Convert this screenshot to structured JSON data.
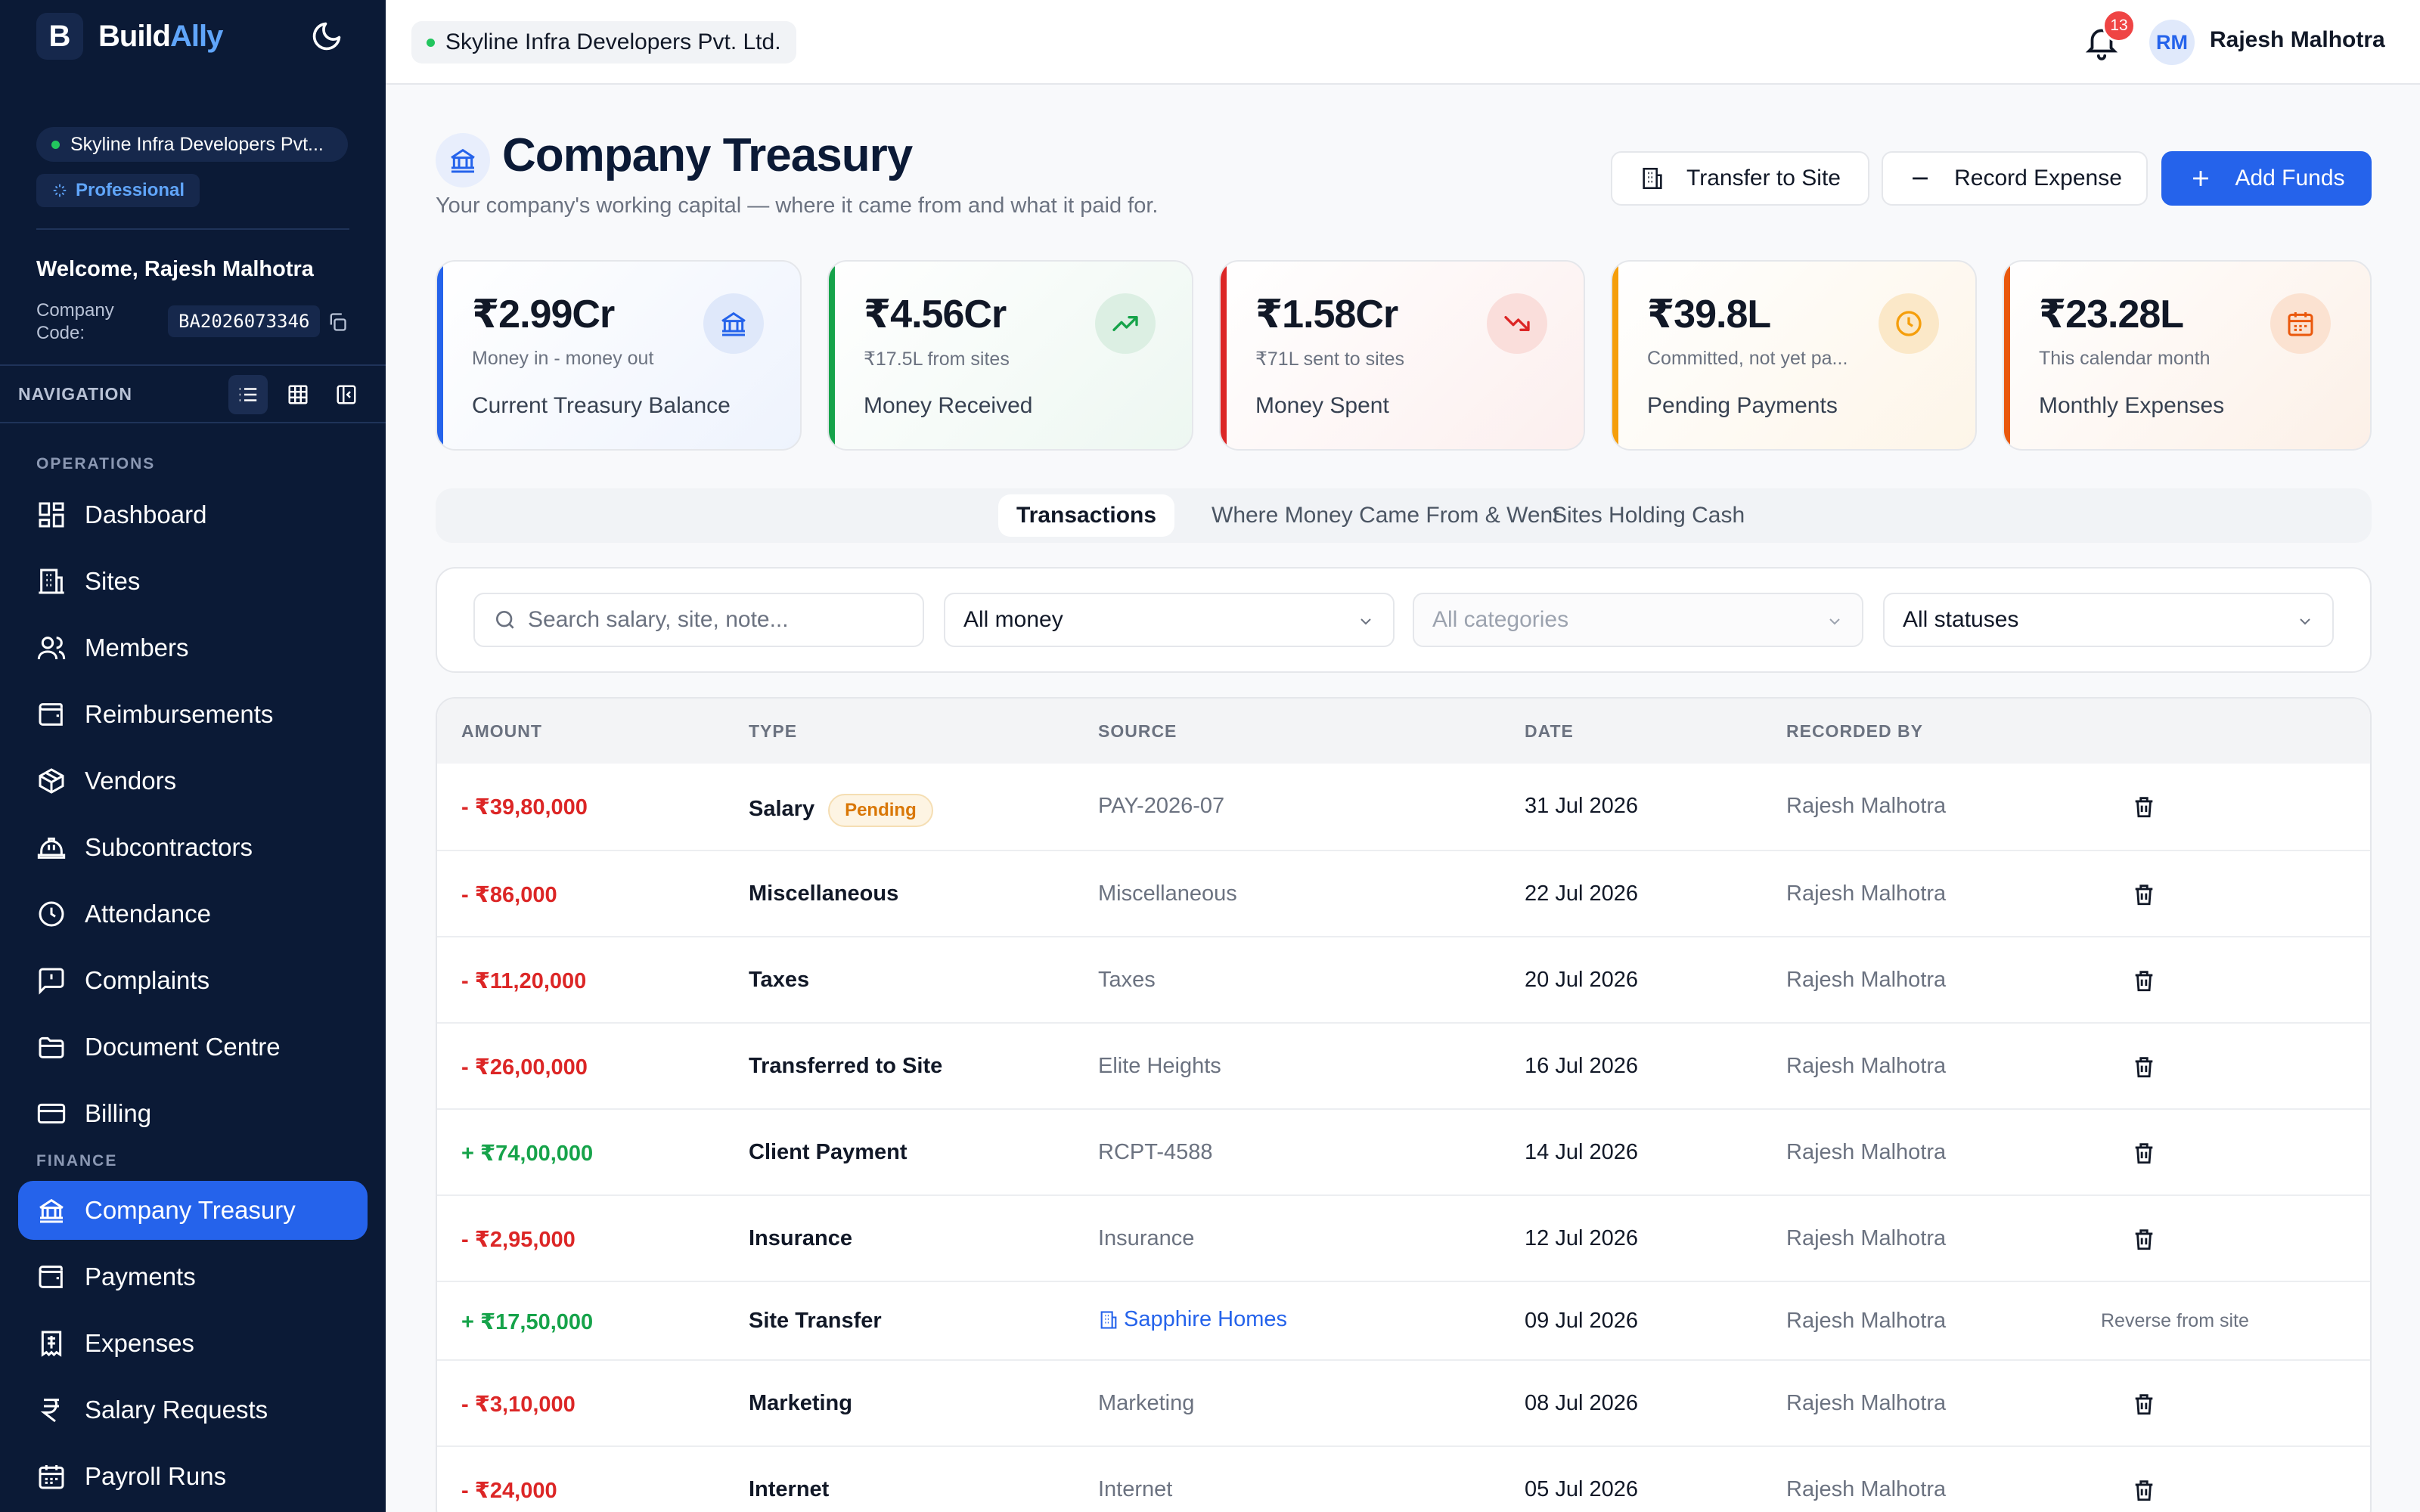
{
  "brand": {
    "prefix": "Build",
    "suffix": "Ally"
  },
  "sidebar": {
    "org_name": "Skyline Infra Developers Pvt...",
    "plan": "Professional",
    "welcome": "Welcome, Rajesh Malhotra",
    "company_code_label": "Company Code:",
    "company_code": "BA2026073346",
    "navigation_label": "NAVIGATION",
    "operations_label": "OPERATIONS",
    "finance_label": "FINANCE",
    "operations": [
      {
        "label": "Dashboard",
        "icon": "dashboard-icon"
      },
      {
        "label": "Sites",
        "icon": "building-icon"
      },
      {
        "label": "Members",
        "icon": "users-icon"
      },
      {
        "label": "Reimbursements",
        "icon": "wallet-icon"
      },
      {
        "label": "Vendors",
        "icon": "box-icon"
      },
      {
        "label": "Subcontractors",
        "icon": "hardhat-icon"
      },
      {
        "label": "Attendance",
        "icon": "clock-icon"
      },
      {
        "label": "Complaints",
        "icon": "message-alert-icon"
      },
      {
        "label": "Document Centre",
        "icon": "folder-icon"
      },
      {
        "label": "Billing",
        "icon": "credit-card-icon"
      }
    ],
    "finance": [
      {
        "label": "Company Treasury",
        "icon": "bank-icon",
        "active": true
      },
      {
        "label": "Payments",
        "icon": "wallet-icon"
      },
      {
        "label": "Expenses",
        "icon": "receipt-icon"
      },
      {
        "label": "Salary Requests",
        "icon": "rupee-icon"
      },
      {
        "label": "Payroll Runs",
        "icon": "calendar-icon"
      }
    ]
  },
  "topbar": {
    "org_name": "Skyline Infra Developers Pvt. Ltd.",
    "notifications_count": "13",
    "user_initials": "RM",
    "user_name": "Rajesh Malhotra"
  },
  "page": {
    "title": "Company Treasury",
    "subtitle": "Your company's working capital — where it came from and what it paid for.",
    "actions": {
      "transfer": "Transfer to Site",
      "record": "Record Expense",
      "add": "Add Funds"
    }
  },
  "cards": [
    {
      "value": "₹2.99Cr",
      "hint": "Money in - money out",
      "label": "Current Treasury Balance",
      "accent": "#2563eb",
      "icon": "bank-icon"
    },
    {
      "value": "₹4.56Cr",
      "hint": "₹17.5L from sites",
      "label": "Money Received",
      "accent": "#16a34a",
      "icon": "trending-up-icon"
    },
    {
      "value": "₹1.58Cr",
      "hint": "₹71L sent to sites",
      "label": "Money Spent",
      "accent": "#dc2626",
      "icon": "trending-down-icon"
    },
    {
      "value": "₹39.8L",
      "hint": "Committed, not yet pa...",
      "label": "Pending Payments",
      "accent": "#f59e0b",
      "icon": "clock-icon"
    },
    {
      "value": "₹23.28L",
      "hint": "This calendar month",
      "label": "Monthly Expenses",
      "accent": "#ea580c",
      "icon": "calendar-icon"
    }
  ],
  "tabs": [
    "Transactions",
    "Where Money Came From & Went",
    "Sites Holding Cash"
  ],
  "filters": {
    "search_placeholder": "Search salary, site, note...",
    "money": "All money",
    "categories": "All categories",
    "statuses": "All statuses"
  },
  "table": {
    "headers": [
      "AMOUNT",
      "TYPE",
      "SOURCE",
      "DATE",
      "RECORDED BY"
    ],
    "rows": [
      {
        "amount": "- ₹39,80,000",
        "dir": "out",
        "type": "Salary",
        "badge": "Pending",
        "source": "PAY-2026-07",
        "date": "31 Jul 2026",
        "by": "Rajesh Malhotra"
      },
      {
        "amount": "- ₹86,000",
        "dir": "out",
        "type": "Miscellaneous",
        "source": "Miscellaneous",
        "date": "22 Jul 2026",
        "by": "Rajesh Malhotra"
      },
      {
        "amount": "- ₹11,20,000",
        "dir": "out",
        "type": "Taxes",
        "source": "Taxes",
        "date": "20 Jul 2026",
        "by": "Rajesh Malhotra"
      },
      {
        "amount": "- ₹26,00,000",
        "dir": "out",
        "type": "Transferred to Site",
        "source": "Elite Heights",
        "date": "16 Jul 2026",
        "by": "Rajesh Malhotra"
      },
      {
        "amount": "+ ₹74,00,000",
        "dir": "in",
        "type": "Client Payment",
        "source": "RCPT-4588",
        "date": "14 Jul 2026",
        "by": "Rajesh Malhotra"
      },
      {
        "amount": "- ₹2,95,000",
        "dir": "out",
        "type": "Insurance",
        "source": "Insurance",
        "date": "12 Jul 2026",
        "by": "Rajesh Malhotra"
      },
      {
        "amount": "+ ₹17,50,000",
        "dir": "in",
        "type": "Site Transfer",
        "source": "Sapphire Homes",
        "source_link": true,
        "date": "09 Jul 2026",
        "by": "Rajesh Malhotra",
        "action": "Reverse from site"
      },
      {
        "amount": "- ₹3,10,000",
        "dir": "out",
        "type": "Marketing",
        "source": "Marketing",
        "date": "08 Jul 2026",
        "by": "Rajesh Malhotra"
      },
      {
        "amount": "- ₹24,000",
        "dir": "out",
        "type": "Internet",
        "source": "Internet",
        "date": "05 Jul 2026",
        "by": "Rajesh Malhotra"
      }
    ]
  }
}
